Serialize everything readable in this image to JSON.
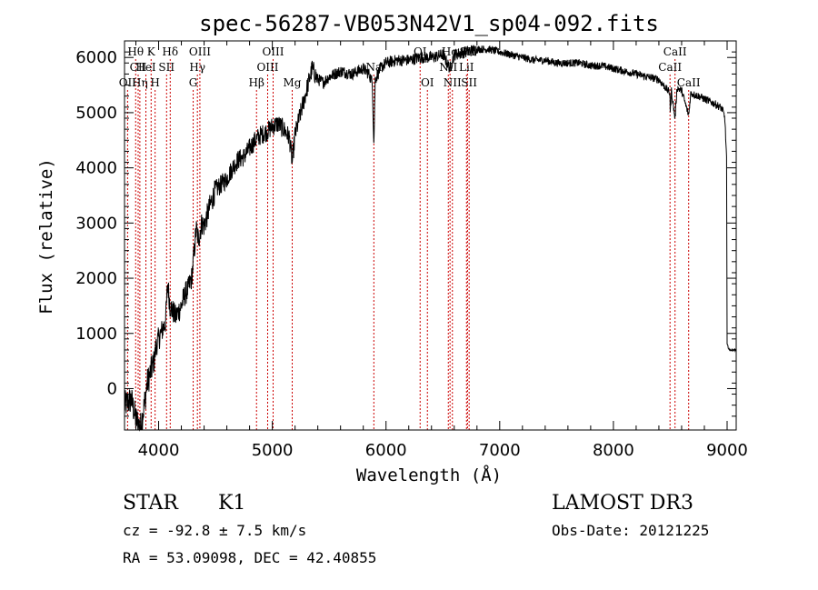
{
  "chart_data": {
    "type": "line",
    "title": "spec-56287-VB053N42V1_sp04-092.fits",
    "xlabel": "Wavelength (Å)",
    "ylabel": "Flux (relative)",
    "xlim": [
      3700,
      9080
    ],
    "ylim": [
      -750,
      6300
    ],
    "x_ticks": [
      4000,
      5000,
      6000,
      7000,
      8000,
      9000
    ],
    "y_ticks": [
      0,
      1000,
      2000,
      3000,
      4000,
      5000,
      6000
    ],
    "grid": false,
    "series": [
      {
        "name": "flux",
        "anchors": [
          [
            3700,
            -300
          ],
          [
            3760,
            -200
          ],
          [
            3800,
            -550
          ],
          [
            3840,
            -700
          ],
          [
            3870,
            -350
          ],
          [
            3900,
            100
          ],
          [
            3930,
            300
          ],
          [
            3960,
            500
          ],
          [
            3980,
            800
          ],
          [
            4000,
            900
          ],
          [
            4030,
            1050
          ],
          [
            4060,
            1200
          ],
          [
            4080,
            1900
          ],
          [
            4100,
            1500
          ],
          [
            4150,
            1300
          ],
          [
            4200,
            1500
          ],
          [
            4230,
            1700
          ],
          [
            4260,
            1800
          ],
          [
            4290,
            2000
          ],
          [
            4310,
            2400
          ],
          [
            4330,
            2900
          ],
          [
            4350,
            2700
          ],
          [
            4380,
            3000
          ],
          [
            4400,
            2950
          ],
          [
            4450,
            3300
          ],
          [
            4500,
            3600
          ],
          [
            4550,
            3700
          ],
          [
            4600,
            3800
          ],
          [
            4650,
            4000
          ],
          [
            4700,
            4150
          ],
          [
            4750,
            4200
          ],
          [
            4800,
            4350
          ],
          [
            4850,
            4500
          ],
          [
            4900,
            4600
          ],
          [
            4950,
            4650
          ],
          [
            5000,
            4750
          ],
          [
            5050,
            4800
          ],
          [
            5100,
            4700
          ],
          [
            5150,
            4550
          ],
          [
            5175,
            4100
          ],
          [
            5200,
            4600
          ],
          [
            5250,
            5000
          ],
          [
            5300,
            5400
          ],
          [
            5350,
            5800
          ],
          [
            5400,
            5600
          ],
          [
            5450,
            5550
          ],
          [
            5500,
            5650
          ],
          [
            5600,
            5750
          ],
          [
            5700,
            5700
          ],
          [
            5800,
            5800
          ],
          [
            5850,
            5700
          ],
          [
            5880,
            5550
          ],
          [
            5893,
            4400
          ],
          [
            5905,
            5600
          ],
          [
            5950,
            5800
          ],
          [
            6000,
            5900
          ],
          [
            6100,
            5950
          ],
          [
            6200,
            5950
          ],
          [
            6300,
            6000
          ],
          [
            6400,
            6000
          ],
          [
            6500,
            6050
          ],
          [
            6563,
            5800
          ],
          [
            6600,
            6050
          ],
          [
            6700,
            6100
          ],
          [
            6800,
            6150
          ],
          [
            6900,
            6150
          ],
          [
            7000,
            6100
          ],
          [
            7100,
            6050
          ],
          [
            7200,
            6000
          ],
          [
            7300,
            5950
          ],
          [
            7400,
            5950
          ],
          [
            7500,
            5900
          ],
          [
            7600,
            5900
          ],
          [
            7700,
            5900
          ],
          [
            7800,
            5850
          ],
          [
            7900,
            5850
          ],
          [
            8000,
            5800
          ],
          [
            8100,
            5750
          ],
          [
            8200,
            5700
          ],
          [
            8300,
            5650
          ],
          [
            8400,
            5600
          ],
          [
            8498,
            5350
          ],
          [
            8500,
            5000
          ],
          [
            8510,
            5400
          ],
          [
            8542,
            4900
          ],
          [
            8560,
            5450
          ],
          [
            8600,
            5400
          ],
          [
            8662,
            4950
          ],
          [
            8680,
            5350
          ],
          [
            8750,
            5300
          ],
          [
            8800,
            5250
          ],
          [
            8850,
            5200
          ],
          [
            8900,
            5150
          ],
          [
            8940,
            5100
          ],
          [
            8960,
            5050
          ],
          [
            8980,
            4900
          ],
          [
            8995,
            4200
          ],
          [
            9000,
            800
          ],
          [
            9020,
            700
          ],
          [
            9080,
            700
          ]
        ]
      }
    ],
    "spectral_lines": [
      {
        "label": "Hθ",
        "wavelength": 3798,
        "row": 1
      },
      {
        "label": "CII",
        "wavelength": 3820,
        "row": 2
      },
      {
        "label": "OII",
        "wavelength": 3727,
        "row": 3
      },
      {
        "label": "Hη",
        "wavelength": 3835,
        "row": 3
      },
      {
        "label": "K",
        "wavelength": 3934,
        "row": 1
      },
      {
        "label": "HeI",
        "wavelength": 3888,
        "row": 2
      },
      {
        "label": "H",
        "wavelength": 3969,
        "row": 3
      },
      {
        "label": "Hδ",
        "wavelength": 4102,
        "row": 1
      },
      {
        "label": "SII",
        "wavelength": 4070,
        "row": 2
      },
      {
        "label": "OIII",
        "wavelength": 4363,
        "row": 1
      },
      {
        "label": "Hγ",
        "wavelength": 4341,
        "row": 2
      },
      {
        "label": "G",
        "wavelength": 4304,
        "row": 3
      },
      {
        "label": "OIII",
        "wavelength": 5007,
        "row": 1
      },
      {
        "label": "OIII",
        "wavelength": 4959,
        "row": 2
      },
      {
        "label": "Hβ",
        "wavelength": 4861,
        "row": 3
      },
      {
        "label": "Mg",
        "wavelength": 5175,
        "row": 3
      },
      {
        "label": "Na",
        "wavelength": 5893,
        "row": 2
      },
      {
        "label": "OI",
        "wavelength": 6300,
        "row": 1
      },
      {
        "label": "OI",
        "wavelength": 6364,
        "row": 3
      },
      {
        "label": "Hα",
        "wavelength": 6563,
        "row": 1
      },
      {
        "label": "NII",
        "wavelength": 6548,
        "row": 2
      },
      {
        "label": "NII",
        "wavelength": 6584,
        "row": 3
      },
      {
        "label": "SII",
        "wavelength": 6717,
        "row": 1
      },
      {
        "label": "LiI",
        "wavelength": 6708,
        "row": 2
      },
      {
        "label": "SII",
        "wavelength": 6731,
        "row": 3
      },
      {
        "label": "CaII",
        "wavelength": 8542,
        "row": 1
      },
      {
        "label": "CaII",
        "wavelength": 8498,
        "row": 2
      },
      {
        "label": "CaII",
        "wavelength": 8662,
        "row": 3
      }
    ]
  },
  "info": {
    "class": "STAR",
    "subclass": "K1",
    "survey": "LAMOST DR3",
    "cz": "cz = -92.8 ± 7.5 km/s",
    "obs_date": "Obs-Date: 20121225",
    "radec": "RA =  53.09098, DEC =  42.40855"
  },
  "colors": {
    "spectrum": "#000000",
    "line_marker": "#cc0000",
    "axis": "#000000",
    "background": "#ffffff"
  }
}
